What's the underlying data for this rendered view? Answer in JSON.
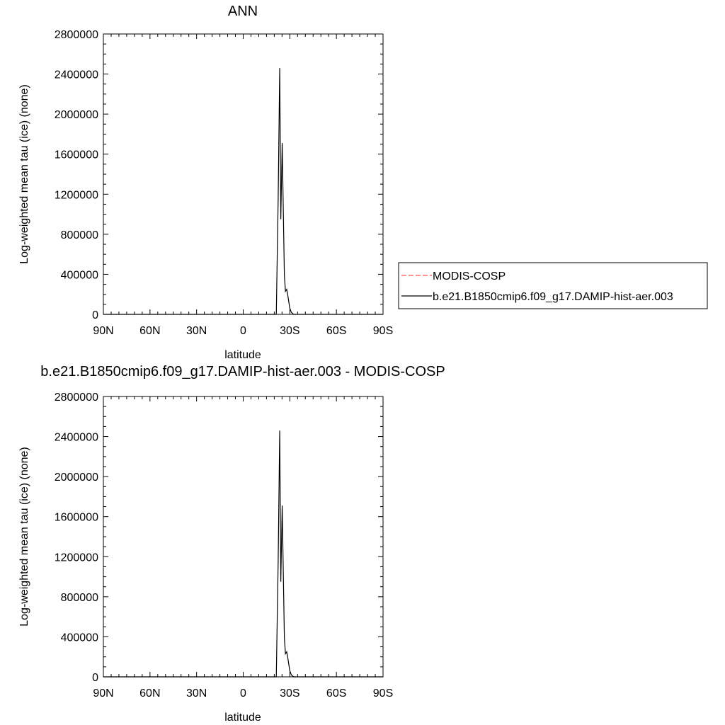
{
  "chart_data": [
    {
      "type": "line",
      "title": "ANN",
      "xlabel": "latitude",
      "ylabel": "Log-weighted mean tau (ice) (none)",
      "xlim": [
        -90,
        90
      ],
      "ylim": [
        0,
        2800000
      ],
      "x_ticks": [
        {
          "value": -90,
          "label": "90N"
        },
        {
          "value": -60,
          "label": "60N"
        },
        {
          "value": -30,
          "label": "30N"
        },
        {
          "value": 0,
          "label": "0"
        },
        {
          "value": 30,
          "label": "30S"
        },
        {
          "value": 60,
          "label": "60S"
        },
        {
          "value": 90,
          "label": "90S"
        }
      ],
      "y_ticks": [
        {
          "value": 0,
          "label": "0"
        },
        {
          "value": 400000,
          "label": "400000"
        },
        {
          "value": 800000,
          "label": "800000"
        },
        {
          "value": 1200000,
          "label": "1200000"
        },
        {
          "value": 1600000,
          "label": "1600000"
        },
        {
          "value": 2000000,
          "label": "2000000"
        },
        {
          "value": 2400000,
          "label": "2400000"
        },
        {
          "value": 2800000,
          "label": "2800000"
        }
      ],
      "legend": {
        "placement": "right",
        "entries": [
          {
            "label": "MODIS-COSP",
            "color": "#ff5555",
            "dash": true
          },
          {
            "label": "b.e21.B1850cmip6.f09_g17.DAMIP-hist-aer.003",
            "color": "#000000",
            "dash": false
          }
        ]
      },
      "series": [
        {
          "name": "b.e21.B1850cmip6.f09_g17.DAMIP-hist-aer.003",
          "color": "#000000",
          "x": [
            -90,
            21,
            21.3,
            22.5,
            23.5,
            24.2,
            25.1,
            26.5,
            27.2,
            28,
            28.7,
            30,
            31,
            32,
            33,
            35,
            40,
            90
          ],
          "y": [
            0,
            0,
            0,
            1150000,
            2460000,
            950000,
            1710000,
            390000,
            230000,
            250000,
            190000,
            60000,
            20000,
            5000,
            0,
            0,
            0,
            0
          ]
        }
      ]
    },
    {
      "type": "line",
      "title": "b.e21.B1850cmip6.f09_g17.DAMIP-hist-aer.003 - MODIS-COSP",
      "xlabel": "latitude",
      "ylabel": "Log-weighted mean tau (ice) (none)",
      "xlim": [
        -90,
        90
      ],
      "ylim": [
        0,
        2800000
      ],
      "x_ticks": [
        {
          "value": -90,
          "label": "90N"
        },
        {
          "value": -60,
          "label": "60N"
        },
        {
          "value": -30,
          "label": "30N"
        },
        {
          "value": 0,
          "label": "0"
        },
        {
          "value": 30,
          "label": "30S"
        },
        {
          "value": 60,
          "label": "60S"
        },
        {
          "value": 90,
          "label": "90S"
        }
      ],
      "y_ticks": [
        {
          "value": 0,
          "label": "0"
        },
        {
          "value": 400000,
          "label": "400000"
        },
        {
          "value": 800000,
          "label": "800000"
        },
        {
          "value": 1200000,
          "label": "1200000"
        },
        {
          "value": 1600000,
          "label": "1600000"
        },
        {
          "value": 2000000,
          "label": "2000000"
        },
        {
          "value": 2400000,
          "label": "2400000"
        },
        {
          "value": 2800000,
          "label": "2800000"
        }
      ],
      "series": [
        {
          "color": "#000000",
          "x": [
            -90,
            21,
            21.3,
            22.5,
            23.5,
            24.2,
            25.1,
            26.5,
            27.2,
            28,
            28.7,
            30,
            31,
            32,
            33,
            35,
            40,
            90
          ],
          "y": [
            0,
            0,
            0,
            1150000,
            2460000,
            950000,
            1710000,
            390000,
            230000,
            250000,
            190000,
            60000,
            20000,
            5000,
            0,
            0,
            0,
            0
          ]
        }
      ]
    }
  ]
}
